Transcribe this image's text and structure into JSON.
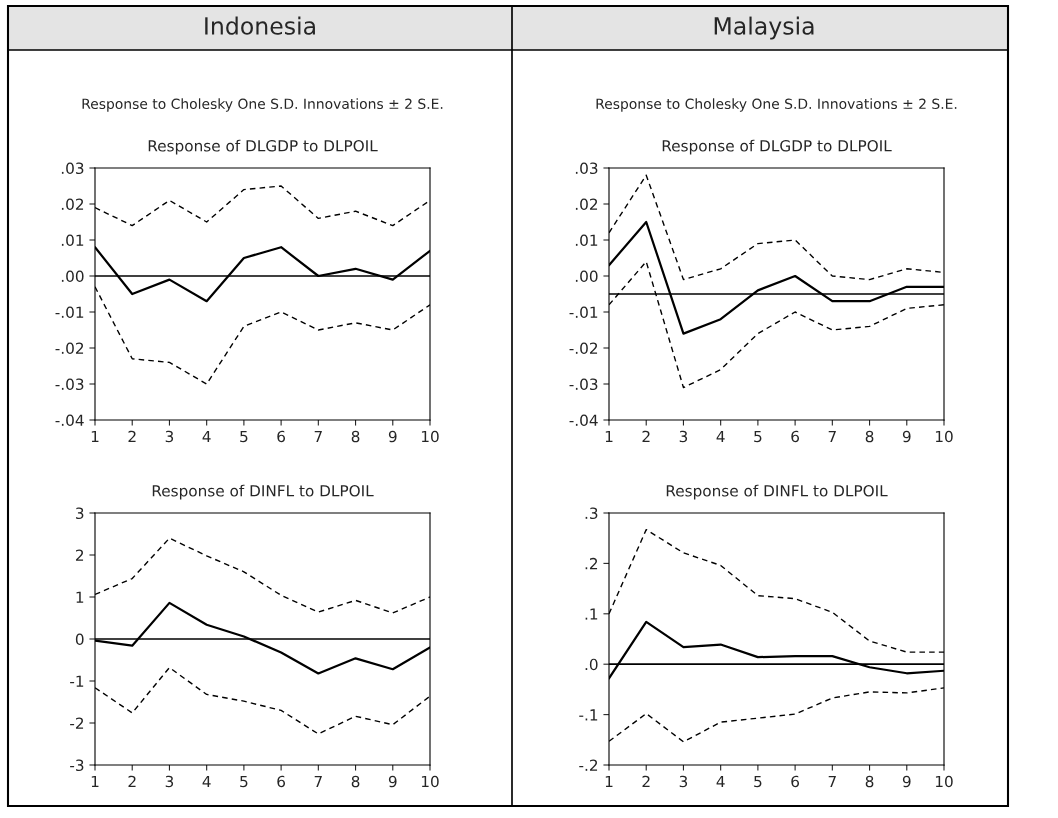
{
  "chart_data": [
    {
      "type": "line",
      "title": "Response of DLGDP to DLPOIL",
      "subtitle": "Response to Cholesky One S.D. Innovations ± 2 S.E.",
      "annotations": [
        "Indonesia"
      ],
      "x": [
        1,
        2,
        3,
        4,
        5,
        6,
        7,
        8,
        9,
        10
      ],
      "xlim": [
        1,
        10
      ],
      "xticks": [
        1,
        2,
        3,
        4,
        5,
        6,
        7,
        8,
        9,
        10
      ],
      "ylim": [
        -0.04,
        0.03
      ],
      "yticks": [
        {
          "value": -0.04,
          "label": "-.04"
        },
        {
          "value": -0.03,
          "label": "-.03"
        },
        {
          "value": -0.02,
          "label": "-.02"
        },
        {
          "value": -0.01,
          "label": "-.01"
        },
        {
          "value": 0,
          "label": ".00"
        },
        {
          "value": 0.01,
          "label": ".01"
        },
        {
          "value": 0.02,
          "label": ".02"
        },
        {
          "value": 0.03,
          "label": ".03"
        }
      ],
      "ref_lines": [
        {
          "axis": "y",
          "value": 0,
          "color": "#000000",
          "line_style": "solid"
        }
      ],
      "series": [
        {
          "color": "#000000",
          "line_style": "solid",
          "values": [
            0.008,
            -0.005,
            -0.001,
            -0.007,
            0.005,
            0.008,
            0.0,
            0.002,
            -0.001,
            0.007
          ]
        },
        {
          "color": "#000000",
          "line_style": "dashed",
          "values": [
            0.019,
            0.014,
            0.021,
            0.015,
            0.024,
            0.025,
            0.016,
            0.018,
            0.014,
            0.021
          ]
        },
        {
          "color": "#000000",
          "line_style": "dashed",
          "values": [
            -0.003,
            -0.023,
            -0.024,
            -0.03,
            -0.014,
            -0.01,
            -0.015,
            -0.013,
            -0.015,
            -0.008
          ]
        }
      ]
    },
    {
      "type": "line",
      "title": "Response of DLGDP to DLPOIL",
      "subtitle": "Response to Cholesky One S.D. Innovations ± 2 S.E.",
      "annotations": [
        "Malaysia"
      ],
      "x": [
        1,
        2,
        3,
        4,
        5,
        6,
        7,
        8,
        9,
        10
      ],
      "xlim": [
        1,
        10
      ],
      "xticks": [
        1,
        2,
        3,
        4,
        5,
        6,
        7,
        8,
        9,
        10
      ],
      "ylim": [
        -0.04,
        0.03
      ],
      "yticks": [
        {
          "value": -0.04,
          "label": "-.04"
        },
        {
          "value": -0.03,
          "label": "-.03"
        },
        {
          "value": -0.02,
          "label": "-.02"
        },
        {
          "value": -0.01,
          "label": "-.01"
        },
        {
          "value": 0,
          "label": ".00"
        },
        {
          "value": 0.01,
          "label": ".01"
        },
        {
          "value": 0.02,
          "label": ".02"
        },
        {
          "value": 0.03,
          "label": ".03"
        }
      ],
      "ref_lines": [
        {
          "axis": "y",
          "value": -0.005,
          "color": "#000000",
          "line_style": "solid"
        }
      ],
      "series": [
        {
          "color": "#000000",
          "line_style": "solid",
          "values": [
            0.003,
            0.015,
            -0.016,
            -0.012,
            -0.004,
            0.0,
            -0.007,
            -0.007,
            -0.003,
            -0.003
          ]
        },
        {
          "color": "#000000",
          "line_style": "dashed",
          "values": [
            0.012,
            0.028,
            -0.001,
            0.002,
            0.009,
            0.01,
            0.0,
            -0.001,
            0.002,
            0.001
          ]
        },
        {
          "color": "#000000",
          "line_style": "dashed",
          "values": [
            -0.008,
            0.004,
            -0.031,
            -0.026,
            -0.016,
            -0.01,
            -0.015,
            -0.014,
            -0.009,
            -0.008
          ]
        }
      ]
    },
    {
      "type": "line",
      "title": "Response of DINFL to DLPOIL",
      "x": [
        1,
        2,
        3,
        4,
        5,
        6,
        7,
        8,
        9,
        10
      ],
      "xlim": [
        1,
        10
      ],
      "xticks": [
        1,
        2,
        3,
        4,
        5,
        6,
        7,
        8,
        9,
        10
      ],
      "ylim": [
        -3,
        3
      ],
      "yticks": [
        -3,
        -2,
        -1,
        0,
        1,
        2,
        3
      ],
      "ref_lines": [
        {
          "axis": "y",
          "value": 0,
          "color": "#000000",
          "line_style": "solid"
        }
      ],
      "series": [
        {
          "color": "#000000",
          "line_style": "solid",
          "values": [
            -0.04,
            -0.16,
            0.86,
            0.34,
            0.06,
            -0.32,
            -0.82,
            -0.46,
            -0.72,
            -0.2
          ]
        },
        {
          "color": "#000000",
          "line_style": "dashed",
          "values": [
            1.06,
            1.44,
            2.4,
            1.98,
            1.6,
            1.04,
            0.64,
            0.92,
            0.62,
            1.0
          ]
        },
        {
          "color": "#000000",
          "line_style": "dashed",
          "values": [
            -1.16,
            -1.76,
            -0.68,
            -1.32,
            -1.48,
            -1.7,
            -2.26,
            -1.84,
            -2.04,
            -1.36
          ]
        }
      ]
    },
    {
      "type": "line",
      "title": "Response of DINFL to DLPOIL",
      "x": [
        1,
        2,
        3,
        4,
        5,
        6,
        7,
        8,
        9,
        10
      ],
      "xlim": [
        1,
        10
      ],
      "xticks": [
        1,
        2,
        3,
        4,
        5,
        6,
        7,
        8,
        9,
        10
      ],
      "ylim": [
        -0.2,
        0.3
      ],
      "yticks": [
        {
          "value": -0.2,
          "label": "-.2"
        },
        {
          "value": -0.1,
          "label": "-.1"
        },
        {
          "value": 0,
          "label": ".0"
        },
        {
          "value": 0.1,
          "label": ".1"
        },
        {
          "value": 0.2,
          "label": ".2"
        },
        {
          "value": 0.3,
          "label": ".3"
        }
      ],
      "ref_lines": [
        {
          "axis": "y",
          "value": 0,
          "color": "#000000",
          "line_style": "solid"
        }
      ],
      "series": [
        {
          "color": "#000000",
          "line_style": "solid",
          "values": [
            -0.028,
            0.084,
            0.034,
            0.039,
            0.014,
            0.016,
            0.016,
            -0.006,
            -0.018,
            -0.013
          ]
        },
        {
          "color": "#000000",
          "line_style": "dashed",
          "values": [
            0.1,
            0.267,
            0.221,
            0.196,
            0.136,
            0.13,
            0.103,
            0.046,
            0.024,
            0.024
          ]
        },
        {
          "color": "#000000",
          "line_style": "dashed",
          "values": [
            -0.153,
            -0.098,
            -0.154,
            -0.115,
            -0.107,
            -0.099,
            -0.067,
            -0.055,
            -0.057,
            -0.047
          ]
        }
      ]
    }
  ]
}
